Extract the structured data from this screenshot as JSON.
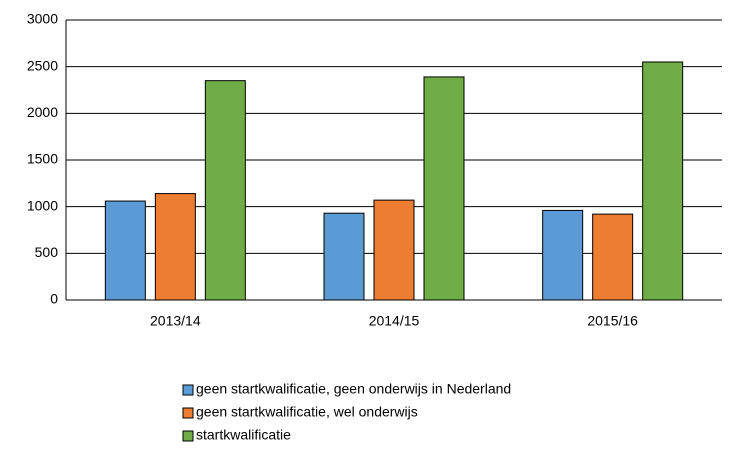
{
  "chart_data": {
    "type": "bar",
    "categories": [
      "2013/14",
      "2014/15",
      "2015/16"
    ],
    "series": [
      {
        "name": "geen startkwalificatie, geen onderwijs in Nederland",
        "color": "#5b9bd5",
        "values": [
          1060,
          930,
          960
        ]
      },
      {
        "name": "geen startkwalificatie, wel onderwijs",
        "color": "#ed7d31",
        "values": [
          1140,
          1070,
          920
        ]
      },
      {
        "name": "startkwalificatie",
        "color": "#70ad47",
        "values": [
          2350,
          2390,
          2550
        ]
      }
    ],
    "ylim": [
      0,
      3000
    ],
    "yticks": [
      0,
      500,
      1000,
      1500,
      2000,
      2500,
      3000
    ],
    "grid": true,
    "legend": "bottom"
  }
}
